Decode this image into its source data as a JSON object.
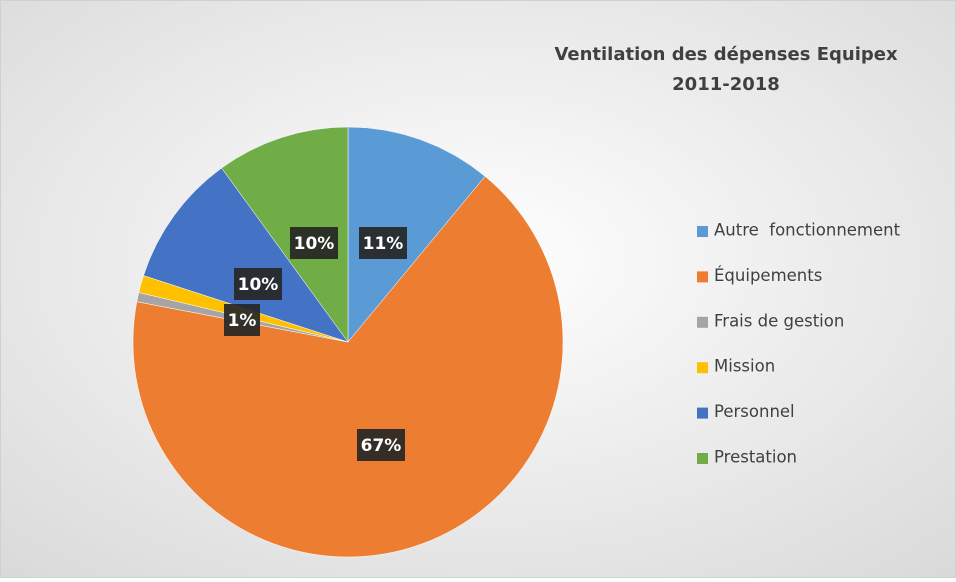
{
  "chart_data": {
    "type": "pie",
    "title": "Ventilation des dépenses Equipex 2011-2018",
    "categories": [
      "Autre  fonctionnement",
      "Équipements",
      "Frais de gestion",
      "Mission",
      "Personnel",
      "Prestation"
    ],
    "values": [
      11,
      67,
      0.7,
      1.3,
      10,
      10
    ],
    "value_labels": [
      "11%",
      "67%",
      null,
      "1%",
      "10%",
      "10%"
    ],
    "colors": [
      "#5b9bd5",
      "#ed7d31",
      "#a5a5a5",
      "#ffc000",
      "#4472c4",
      "#70ad47"
    ],
    "legend": "right"
  }
}
